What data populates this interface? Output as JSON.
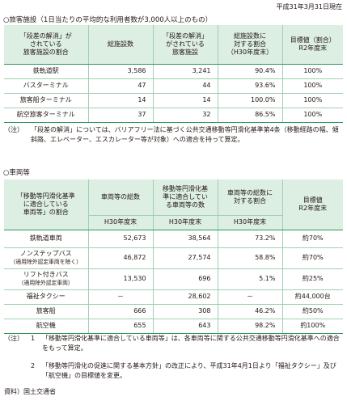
{
  "date": "平成31年3月31日現在",
  "table1": {
    "title": "○旅客施設（1日当たりの平均的な利用者数が3,000人以上のもの）",
    "headers": [
      [
        "「段差の解消」が",
        "されている",
        "旅客施設の割合"
      ],
      [
        "総施設数"
      ],
      [
        "「段差の解消」",
        "がされている",
        "旅客施設"
      ],
      [
        "総施設数に",
        "対する割合",
        "（H30年度末）"
      ],
      [
        "目標値（割合）",
        "R2年度末"
      ]
    ],
    "rows": [
      [
        "鉄軌道駅",
        "3,586",
        "3,241",
        "90.4%",
        "100%"
      ],
      [
        "バスターミナル",
        "47",
        "44",
        "93.6%",
        "100%"
      ],
      [
        "旅客船ターミナル",
        "14",
        "14",
        "100.0%",
        "100%"
      ],
      [
        "航空旅客ターミナル",
        "37",
        "32",
        "86.5%",
        "100%"
      ]
    ],
    "note_mark": "（注）",
    "note": "「段差の解消」については、バリアフリー法に基づく公共交通移動等円滑化基準第4条（移動経路の幅、傾斜路、エレベーター、エスカレーター等が対象）への適合を持って算定。"
  },
  "table2": {
    "title": "○車両等",
    "col0_header": [
      "「移動等円滑化基準",
      "に適合している",
      "車両等」の割合"
    ],
    "col1_header": "車両等の総数",
    "col2_header": [
      "移動等円滑化基",
      "準に適合してい",
      "る車両等の数"
    ],
    "col3_header": [
      "車両等の総数に",
      "対する割合"
    ],
    "col4_header": [
      "目標値",
      "R2年度末"
    ],
    "sub1": "H30年度末",
    "sub2": "H30年度末",
    "sub3": "H30年度末",
    "rows": [
      {
        "label": [
          "鉄軌道車両"
        ],
        "total": "52,673",
        "compliant": "38,564",
        "ratio": "73.2%",
        "target": "約70%"
      },
      {
        "label": [
          "ノンステップバス",
          "（適用除外認定車両を除く）"
        ],
        "total": "46,872",
        "compliant": "27,574",
        "ratio": "58.8%",
        "target": "約70%"
      },
      {
        "label": [
          "リフト付きバス",
          "（適用除外認定車両）"
        ],
        "total": "13,530",
        "compliant": "696",
        "ratio": "5.1%",
        "target": "約25%"
      },
      {
        "label": [
          "福祉タクシー"
        ],
        "total": "－",
        "compliant": "28,602",
        "ratio": "－",
        "target": "約44,000台"
      },
      {
        "label": [
          "旅客船"
        ],
        "total": "666",
        "compliant": "308",
        "ratio": "46.2%",
        "target": "約50%"
      },
      {
        "label": [
          "航空機"
        ],
        "total": "655",
        "compliant": "643",
        "ratio": "98.2%",
        "target": "約100%"
      }
    ],
    "note_mark": "（注）",
    "notes": [
      {
        "num": "1",
        "text": "「移動等円滑化基準に適合している車両等」は、各車両等に関する公共交通移動等円滑化基準への適合をもって算定。"
      },
      {
        "num": "2",
        "text": "「移動等円滑化の促進に関する基本方針」の改正により、平成31年4月1日より「福祉タクシー」及び「航空機」の目標値を変更。"
      }
    ]
  },
  "source": "資料）国土交通省"
}
